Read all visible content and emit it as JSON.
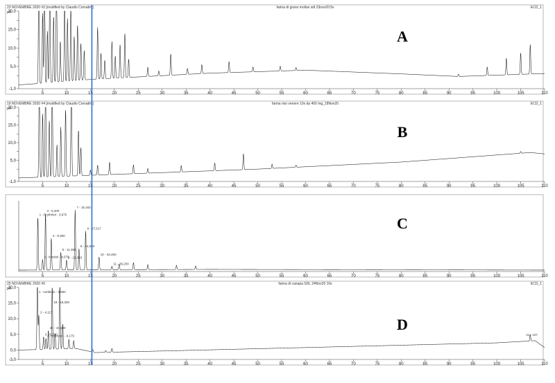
{
  "figure": {
    "panels": [
      {
        "letter": "A",
        "header_left": "23 NOVEMBRE 2020 #2 [modified by Claudio Corradini]",
        "header_center": "farina di grano molise sdt 23nov20:5x",
        "header_right": "ECD_1",
        "unit": "pA"
      },
      {
        "letter": "B",
        "header_left": "19 NOVEMBRE 2020 #4 [modified by Claudio Corradini]",
        "header_center": "farina riso venere 10x da 400 mg_18Nov20",
        "header_right": "ECD_1",
        "unit": "pA"
      },
      {
        "letter": "C",
        "header_left": "",
        "header_center": "",
        "header_right": "",
        "unit": ""
      },
      {
        "letter": "D",
        "header_left": "25 NOVEMBRE 2020 #0",
        "header_center": "farina di canapa SDL 24Nov20 10x",
        "header_right": "ECD_1",
        "unit": "pA"
      }
    ],
    "peak_labels_C": [
      "1 - Erythritol - 3,975",
      "2 - Inositol - 4,575",
      "3 - 5,400",
      "4 - 8,350",
      "5 - 11,383",
      "6 - 13,383",
      "7 - 15,163",
      "8 - 24,850",
      "9 - 27,517",
      "10 - 33,450",
      "11 - 36,200"
    ],
    "peak_labels_D": [
      "1 - sorbitolo - 3,950",
      "2 - 4,117",
      "3 - 5,700",
      "4 - fructosio - 6,175",
      "20 - 19,500",
      "18 - 18,250",
      "21 - 107"
    ]
  },
  "chart_data": [
    {
      "type": "line",
      "panel": "A",
      "ylabel": "pA",
      "xlim": [
        0,
        110
      ],
      "ylim": [
        -1.0,
        20.0
      ],
      "yticks": [
        -1.0,
        2.5,
        5.0,
        7.5,
        10.0,
        12.5,
        15.0,
        17.5,
        20.0
      ],
      "ytick_labels": [
        "-1,0",
        "",
        "5,0",
        "",
        "10,0",
        "",
        "15,0",
        "",
        "20,0"
      ],
      "xticks": [
        5,
        10,
        15,
        20,
        25,
        30,
        35,
        40,
        45,
        50,
        55,
        60,
        65,
        70,
        75,
        80,
        85,
        90,
        95,
        100,
        105,
        110
      ],
      "peaks": [
        [
          4.2,
          30
        ],
        [
          5.0,
          19
        ],
        [
          5.4,
          30
        ],
        [
          6.0,
          14
        ],
        [
          6.5,
          30
        ],
        [
          7.3,
          18
        ],
        [
          7.9,
          30
        ],
        [
          8.7,
          11
        ],
        [
          9.6,
          22
        ],
        [
          10.2,
          17
        ],
        [
          10.9,
          21
        ],
        [
          11.6,
          12
        ],
        [
          12.3,
          15
        ],
        [
          13.0,
          10
        ],
        [
          13.7,
          8
        ],
        [
          16.5,
          14
        ],
        [
          17.2,
          7
        ],
        [
          18.0,
          5
        ],
        [
          19.5,
          10
        ],
        [
          20.2,
          6
        ],
        [
          21.2,
          9
        ],
        [
          22.2,
          12
        ],
        [
          23.0,
          5
        ],
        [
          27.0,
          2.5
        ],
        [
          29.3,
          1.3
        ],
        [
          31.8,
          5.8
        ],
        [
          35.3,
          1.6
        ],
        [
          38.3,
          2.4
        ],
        [
          44.0,
          3.0
        ],
        [
          49.0,
          1.3
        ],
        [
          54.7,
          1.3
        ],
        [
          58.0,
          0.8
        ],
        [
          92.0,
          0.6
        ],
        [
          98.0,
          2.3
        ],
        [
          102.0,
          4.5
        ],
        [
          105.0,
          5.8
        ],
        [
          107.0,
          8.0
        ]
      ],
      "baseline": [
        [
          0,
          0.0
        ],
        [
          15,
          1.5
        ],
        [
          40,
          3.2
        ],
        [
          60,
          4.0
        ],
        [
          80,
          3.0
        ],
        [
          92,
          2.3
        ],
        [
          110,
          3.1
        ]
      ]
    },
    {
      "type": "line",
      "panel": "B",
      "ylabel": "pA",
      "xlim": [
        0,
        110
      ],
      "ylim": [
        -1.0,
        20.0
      ],
      "yticks": [
        -1.0,
        2.5,
        5.0,
        7.5,
        10.0,
        12.5,
        15.0,
        17.5,
        20.0
      ],
      "ytick_labels": [
        "-1,0",
        "",
        "5,0",
        "",
        "10,0",
        "",
        "15,0",
        "",
        "20,0"
      ],
      "xticks": [
        5,
        10,
        15,
        20,
        25,
        30,
        35,
        40,
        45,
        50,
        55,
        60,
        65,
        70,
        75,
        80,
        85,
        90,
        95,
        100,
        105,
        110
      ],
      "peaks": [
        [
          4.3,
          30
        ],
        [
          5.0,
          18
        ],
        [
          5.6,
          30
        ],
        [
          6.4,
          16
        ],
        [
          7.0,
          30
        ],
        [
          8.0,
          9
        ],
        [
          8.8,
          14
        ],
        [
          9.8,
          19
        ],
        [
          11.0,
          30
        ],
        [
          12.5,
          13
        ],
        [
          13.0,
          8
        ],
        [
          15.0,
          1.5
        ],
        [
          16.5,
          2.8
        ],
        [
          19.0,
          3.5
        ],
        [
          24.0,
          2.5
        ],
        [
          27.0,
          1.3
        ],
        [
          34.0,
          1.8
        ],
        [
          41.0,
          2.2
        ],
        [
          47.0,
          4.5
        ],
        [
          53.0,
          1.2
        ],
        [
          58.0,
          0.6
        ],
        [
          105.0,
          0.5
        ]
      ],
      "baseline": [
        [
          0,
          0.0
        ],
        [
          20,
          1.0
        ],
        [
          50,
          2.5
        ],
        [
          80,
          4.5
        ],
        [
          100,
          6.5
        ],
        [
          107,
          7.2
        ],
        [
          110,
          6.8
        ]
      ]
    },
    {
      "type": "line",
      "panel": "C",
      "xlim": [
        0,
        110
      ],
      "ylim": [
        0,
        1
      ],
      "xticks": [
        5,
        10,
        15,
        20,
        25,
        30,
        35,
        40,
        45,
        50,
        55,
        60,
        65,
        70,
        75,
        80,
        85,
        90,
        95,
        100,
        105,
        110
      ],
      "peaks": [
        [
          4.0,
          0.75
        ],
        [
          5.0,
          0.15
        ],
        [
          5.6,
          0.8
        ],
        [
          6.8,
          0.45
        ],
        [
          8.8,
          0.25
        ],
        [
          10.0,
          0.14
        ],
        [
          11.8,
          0.85
        ],
        [
          12.6,
          0.3
        ],
        [
          14.0,
          0.55
        ],
        [
          16.8,
          0.18
        ],
        [
          19.5,
          0.05
        ],
        [
          21.0,
          0.08
        ],
        [
          24.0,
          0.1
        ],
        [
          27.0,
          0.07
        ],
        [
          33.0,
          0.06
        ],
        [
          37.0,
          0.05
        ]
      ],
      "baseline": [
        [
          0,
          0.02
        ],
        [
          40,
          0.03
        ],
        [
          110,
          0.02
        ]
      ]
    },
    {
      "type": "line",
      "panel": "D",
      "ylabel": "pA",
      "xlim": [
        0,
        110
      ],
      "ylim": [
        -3.0,
        20.0
      ],
      "yticks": [
        -3.0,
        0.0,
        5.0,
        10.0,
        15.0,
        20.0
      ],
      "ytick_labels": [
        "-3,0",
        "0,0",
        "5,0",
        "10,0",
        "15,0",
        "20,0"
      ],
      "xticks": [
        5,
        10,
        15,
        20,
        25,
        30,
        35,
        40,
        45,
        50,
        55,
        60,
        65,
        70,
        75,
        80,
        85,
        90,
        95,
        100,
        105,
        110
      ],
      "peaks": [
        [
          3.9,
          22
        ],
        [
          4.2,
          11
        ],
        [
          5.2,
          4
        ],
        [
          5.7,
          3.5
        ],
        [
          6.2,
          6
        ],
        [
          7.0,
          20
        ],
        [
          7.6,
          5
        ],
        [
          8.6,
          22
        ],
        [
          9.2,
          8
        ],
        [
          10.5,
          3
        ],
        [
          11.5,
          2.5
        ],
        [
          15.5,
          0.8
        ],
        [
          18.2,
          0.6
        ],
        [
          19.5,
          1.2
        ],
        [
          107.0,
          2.0
        ]
      ],
      "baseline": [
        [
          0,
          0.0
        ],
        [
          12,
          0.5
        ],
        [
          16,
          -0.8
        ],
        [
          30,
          -0.3
        ],
        [
          60,
          0.8
        ],
        [
          100,
          2.3
        ],
        [
          108,
          3.0
        ],
        [
          110,
          0.8
        ]
      ]
    }
  ],
  "marker": {
    "x": 15.3,
    "color": "#2a6fdb"
  }
}
